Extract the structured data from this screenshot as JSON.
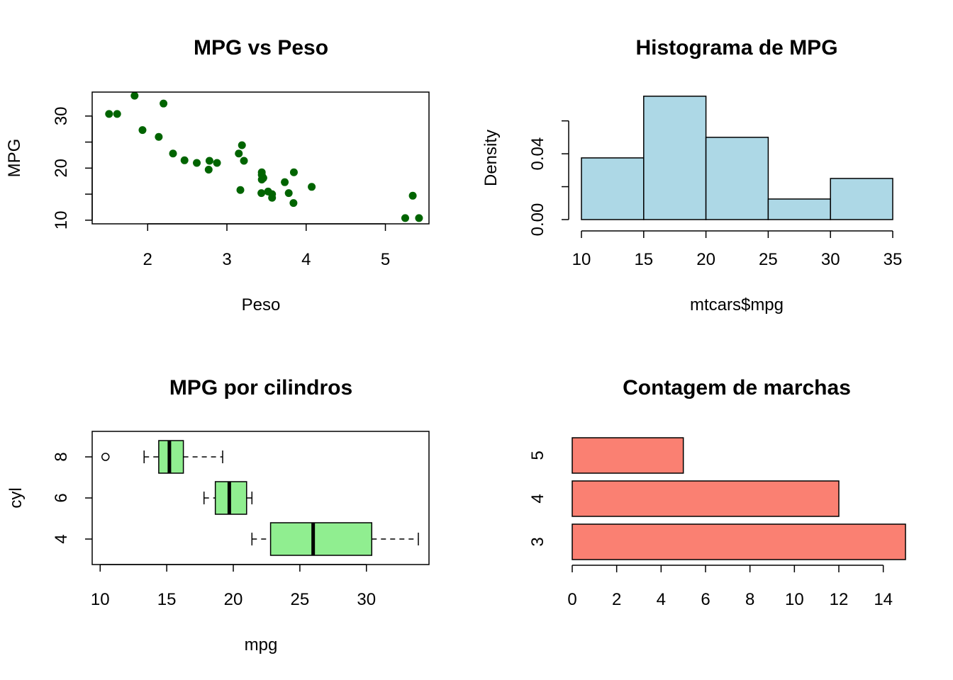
{
  "chart_data": [
    {
      "type": "scatter",
      "title": "MPG vs Peso",
      "xlabel": "Peso",
      "ylabel": "MPG",
      "xlim": [
        1.3,
        5.55
      ],
      "ylim": [
        9.3,
        34.6
      ],
      "xticks": [
        2,
        3,
        4,
        5
      ],
      "yticks": [
        10,
        20,
        30
      ],
      "point_color": "#006400",
      "points": [
        {
          "x": 2.62,
          "y": 21.0
        },
        {
          "x": 2.875,
          "y": 21.0
        },
        {
          "x": 2.32,
          "y": 22.8
        },
        {
          "x": 3.215,
          "y": 21.4
        },
        {
          "x": 3.44,
          "y": 18.7
        },
        {
          "x": 3.46,
          "y": 18.1
        },
        {
          "x": 3.57,
          "y": 14.3
        },
        {
          "x": 3.19,
          "y": 24.4
        },
        {
          "x": 3.15,
          "y": 22.8
        },
        {
          "x": 3.44,
          "y": 19.2
        },
        {
          "x": 3.44,
          "y": 17.8
        },
        {
          "x": 4.07,
          "y": 16.4
        },
        {
          "x": 3.73,
          "y": 17.3
        },
        {
          "x": 3.78,
          "y": 15.2
        },
        {
          "x": 5.25,
          "y": 10.4
        },
        {
          "x": 5.424,
          "y": 10.4
        },
        {
          "x": 5.345,
          "y": 14.7
        },
        {
          "x": 2.2,
          "y": 32.4
        },
        {
          "x": 1.615,
          "y": 30.4
        },
        {
          "x": 1.835,
          "y": 33.9
        },
        {
          "x": 2.465,
          "y": 21.5
        },
        {
          "x": 3.52,
          "y": 15.5
        },
        {
          "x": 3.435,
          "y": 15.2
        },
        {
          "x": 3.84,
          "y": 13.3
        },
        {
          "x": 3.845,
          "y": 19.2
        },
        {
          "x": 1.935,
          "y": 27.3
        },
        {
          "x": 2.14,
          "y": 26.0
        },
        {
          "x": 1.513,
          "y": 30.4
        },
        {
          "x": 3.17,
          "y": 15.8
        },
        {
          "x": 2.77,
          "y": 19.7
        },
        {
          "x": 3.57,
          "y": 15.0
        },
        {
          "x": 2.78,
          "y": 21.4
        }
      ]
    },
    {
      "type": "bar",
      "title": "Histograma de MPG",
      "xlabel": "mtcars$mpg",
      "ylabel": "Density",
      "xticks": [
        10,
        15,
        20,
        25,
        30,
        35
      ],
      "yticks": [
        0.0,
        0.02,
        0.04,
        0.06
      ],
      "ytick_labels": [
        "0.00",
        "",
        "0.04",
        ""
      ],
      "ylim": [
        0,
        0.0775
      ],
      "bar_color": "#ADD8E6",
      "bins": [
        {
          "from": 10,
          "to": 15,
          "density": 0.0375
        },
        {
          "from": 15,
          "to": 20,
          "density": 0.075
        },
        {
          "from": 20,
          "to": 25,
          "density": 0.05
        },
        {
          "from": 25,
          "to": 30,
          "density": 0.0125
        },
        {
          "from": 30,
          "to": 35,
          "density": 0.025
        }
      ]
    },
    {
      "type": "boxplot",
      "title": "MPG por cilindros",
      "xlabel": "mpg",
      "ylabel": "cyl",
      "xlim": [
        9.4,
        34.7
      ],
      "xticks": [
        10,
        15,
        20,
        25,
        30
      ],
      "box_color": "#90EE90",
      "groups": [
        {
          "name": "4",
          "whisker_low": 21.4,
          "q1": 22.8,
          "median": 26.0,
          "q3": 30.4,
          "whisker_high": 33.9,
          "outliers": []
        },
        {
          "name": "6",
          "whisker_low": 17.8,
          "q1": 18.65,
          "median": 19.7,
          "q3": 21.0,
          "whisker_high": 21.4,
          "outliers": []
        },
        {
          "name": "8",
          "whisker_low": 13.3,
          "q1": 14.4,
          "median": 15.2,
          "q3": 16.25,
          "whisker_high": 19.2,
          "outliers": [
            10.4
          ]
        }
      ]
    },
    {
      "type": "bar",
      "orientation": "horizontal",
      "title": "Contagem de marchas",
      "xlabel": "",
      "ylabel": "",
      "xlim": [
        0,
        15
      ],
      "xticks": [
        0,
        2,
        4,
        6,
        8,
        10,
        12,
        14
      ],
      "bar_color": "#FA8072",
      "categories": [
        "3",
        "4",
        "5"
      ],
      "values": [
        15,
        12,
        5
      ]
    }
  ]
}
